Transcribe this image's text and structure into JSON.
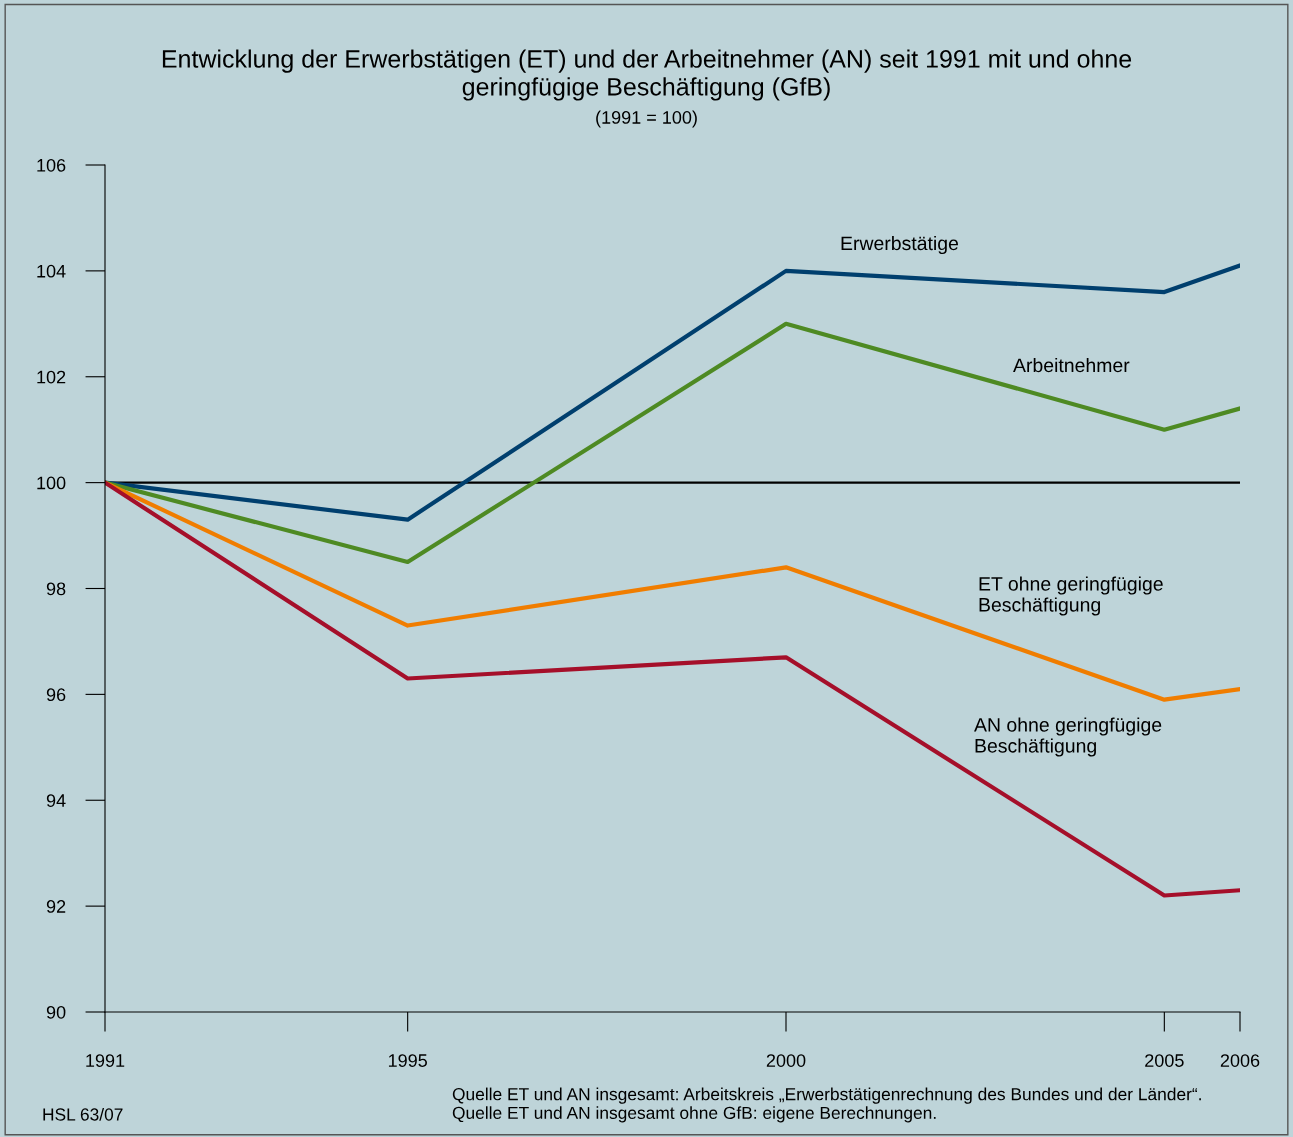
{
  "chart_data": {
    "type": "line",
    "title": "Entwicklung der Erwerbstätigen (ET) und der Arbeitnehmer (AN) seit 1991 mit und ohne\ngeringfügige Beschäftigung (GfB)",
    "subtitle": "(1991 = 100)",
    "x": [
      1991,
      1995,
      2000,
      2005,
      2006
    ],
    "series": [
      {
        "name": "Erwerbstätige",
        "color": "#003f6e",
        "values": [
          100,
          99.3,
          104.0,
          103.6,
          104.1
        ]
      },
      {
        "name": "Arbeitnehmer",
        "color": "#4e8a23",
        "values": [
          100,
          98.5,
          103.0,
          101.0,
          101.4
        ]
      },
      {
        "name": "ET ohne geringfügige\nBeschäftigung",
        "color": "#f07d00",
        "values": [
          100,
          97.3,
          98.4,
          95.9,
          96.1
        ]
      },
      {
        "name": "AN ohne geringfügige\nBeschäftigung",
        "color": "#a50f2a",
        "values": [
          100,
          96.3,
          96.7,
          92.2,
          92.3
        ]
      }
    ],
    "xlim": [
      1991,
      2006
    ],
    "xticks": [
      1991,
      1995,
      2000,
      2005,
      2006
    ],
    "ylim": [
      90,
      106
    ],
    "yticks": [
      90,
      92,
      94,
      96,
      98,
      100,
      102,
      104,
      106
    ],
    "ref_lines": [
      {
        "axis": "y",
        "value": 100,
        "color": "#000000"
      }
    ],
    "grid": false,
    "legend": false,
    "marker": "none",
    "line_style": "solid",
    "annotations": [
      "Quelle ET und AN insgesamt: Arbeitskreis „Erwerbstätigenrechnung des Bundes und der Länder“.\nQuelle ET und AN insgesamt ohne GfB: eigene Berechnungen.",
      "HSL 63/07"
    ]
  }
}
